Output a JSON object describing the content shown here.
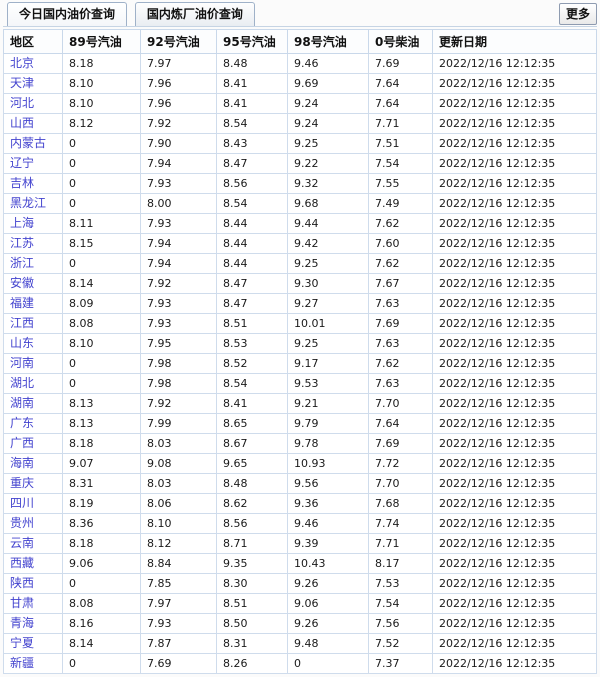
{
  "tabs": [
    {
      "label": "今日国内油价查询",
      "active": true
    },
    {
      "label": "国内炼厂油价查询",
      "active": false
    }
  ],
  "more_label": "更多",
  "colors": {
    "link_blue": "#4343cf",
    "table_border_outer": "#a9c0da",
    "table_border_inner": "#cfdcec",
    "tab_border": "#9fb1c8"
  },
  "table": {
    "columns": [
      "地区",
      "89号汽油",
      "92号汽油",
      "95号汽油",
      "98号汽油",
      "0号柴油",
      "更新日期"
    ],
    "rows": [
      {
        "region": "北京",
        "values": [
          "8.18",
          "7.97",
          "8.48",
          "9.46",
          "7.69"
        ],
        "updated": "2022/12/16 12:12:35"
      },
      {
        "region": "天津",
        "values": [
          "8.10",
          "7.96",
          "8.41",
          "9.69",
          "7.64"
        ],
        "updated": "2022/12/16 12:12:35"
      },
      {
        "region": "河北",
        "values": [
          "8.10",
          "7.96",
          "8.41",
          "9.24",
          "7.64"
        ],
        "updated": "2022/12/16 12:12:35"
      },
      {
        "region": "山西",
        "values": [
          "8.12",
          "7.92",
          "8.54",
          "9.24",
          "7.71"
        ],
        "updated": "2022/12/16 12:12:35"
      },
      {
        "region": "内蒙古",
        "values": [
          "0",
          "7.90",
          "8.43",
          "9.25",
          "7.51"
        ],
        "updated": "2022/12/16 12:12:35"
      },
      {
        "region": "辽宁",
        "values": [
          "0",
          "7.94",
          "8.47",
          "9.22",
          "7.54"
        ],
        "updated": "2022/12/16 12:12:35"
      },
      {
        "region": "吉林",
        "values": [
          "0",
          "7.93",
          "8.56",
          "9.32",
          "7.55"
        ],
        "updated": "2022/12/16 12:12:35"
      },
      {
        "region": "黑龙江",
        "values": [
          "0",
          "8.00",
          "8.54",
          "9.68",
          "7.49"
        ],
        "updated": "2022/12/16 12:12:35"
      },
      {
        "region": "上海",
        "values": [
          "8.11",
          "7.93",
          "8.44",
          "9.44",
          "7.62"
        ],
        "updated": "2022/12/16 12:12:35"
      },
      {
        "region": "江苏",
        "values": [
          "8.15",
          "7.94",
          "8.44",
          "9.42",
          "7.60"
        ],
        "updated": "2022/12/16 12:12:35"
      },
      {
        "region": "浙江",
        "values": [
          "0",
          "7.94",
          "8.44",
          "9.25",
          "7.62"
        ],
        "updated": "2022/12/16 12:12:35"
      },
      {
        "region": "安徽",
        "values": [
          "8.14",
          "7.92",
          "8.47",
          "9.30",
          "7.67"
        ],
        "updated": "2022/12/16 12:12:35"
      },
      {
        "region": "福建",
        "values": [
          "8.09",
          "7.93",
          "8.47",
          "9.27",
          "7.63"
        ],
        "updated": "2022/12/16 12:12:35"
      },
      {
        "region": "江西",
        "values": [
          "8.08",
          "7.93",
          "8.51",
          "10.01",
          "7.69"
        ],
        "updated": "2022/12/16 12:12:35"
      },
      {
        "region": "山东",
        "values": [
          "8.10",
          "7.95",
          "8.53",
          "9.25",
          "7.63"
        ],
        "updated": "2022/12/16 12:12:35"
      },
      {
        "region": "河南",
        "values": [
          "0",
          "7.98",
          "8.52",
          "9.17",
          "7.62"
        ],
        "updated": "2022/12/16 12:12:35"
      },
      {
        "region": "湖北",
        "values": [
          "0",
          "7.98",
          "8.54",
          "9.53",
          "7.63"
        ],
        "updated": "2022/12/16 12:12:35"
      },
      {
        "region": "湖南",
        "values": [
          "8.13",
          "7.92",
          "8.41",
          "9.21",
          "7.70"
        ],
        "updated": "2022/12/16 12:12:35"
      },
      {
        "region": "广东",
        "values": [
          "8.13",
          "7.99",
          "8.65",
          "9.79",
          "7.64"
        ],
        "updated": "2022/12/16 12:12:35"
      },
      {
        "region": "广西",
        "values": [
          "8.18",
          "8.03",
          "8.67",
          "9.78",
          "7.69"
        ],
        "updated": "2022/12/16 12:12:35"
      },
      {
        "region": "海南",
        "values": [
          "9.07",
          "9.08",
          "9.65",
          "10.93",
          "7.72"
        ],
        "updated": "2022/12/16 12:12:35"
      },
      {
        "region": "重庆",
        "values": [
          "8.31",
          "8.03",
          "8.48",
          "9.56",
          "7.70"
        ],
        "updated": "2022/12/16 12:12:35"
      },
      {
        "region": "四川",
        "values": [
          "8.19",
          "8.06",
          "8.62",
          "9.36",
          "7.68"
        ],
        "updated": "2022/12/16 12:12:35"
      },
      {
        "region": "贵州",
        "values": [
          "8.36",
          "8.10",
          "8.56",
          "9.46",
          "7.74"
        ],
        "updated": "2022/12/16 12:12:35"
      },
      {
        "region": "云南",
        "values": [
          "8.18",
          "8.12",
          "8.71",
          "9.39",
          "7.71"
        ],
        "updated": "2022/12/16 12:12:35"
      },
      {
        "region": "西藏",
        "values": [
          "9.06",
          "8.84",
          "9.35",
          "10.43",
          "8.17"
        ],
        "updated": "2022/12/16 12:12:35"
      },
      {
        "region": "陕西",
        "values": [
          "0",
          "7.85",
          "8.30",
          "9.26",
          "7.53"
        ],
        "updated": "2022/12/16 12:12:35"
      },
      {
        "region": "甘肃",
        "values": [
          "8.08",
          "7.97",
          "8.51",
          "9.06",
          "7.54"
        ],
        "updated": "2022/12/16 12:12:35"
      },
      {
        "region": "青海",
        "values": [
          "8.16",
          "7.93",
          "8.50",
          "9.26",
          "7.56"
        ],
        "updated": "2022/12/16 12:12:35"
      },
      {
        "region": "宁夏",
        "values": [
          "8.14",
          "7.87",
          "8.31",
          "9.48",
          "7.52"
        ],
        "updated": "2022/12/16 12:12:35"
      },
      {
        "region": "新疆",
        "values": [
          "0",
          "7.69",
          "8.26",
          "0",
          "7.37"
        ],
        "updated": "2022/12/16 12:12:35"
      }
    ]
  }
}
